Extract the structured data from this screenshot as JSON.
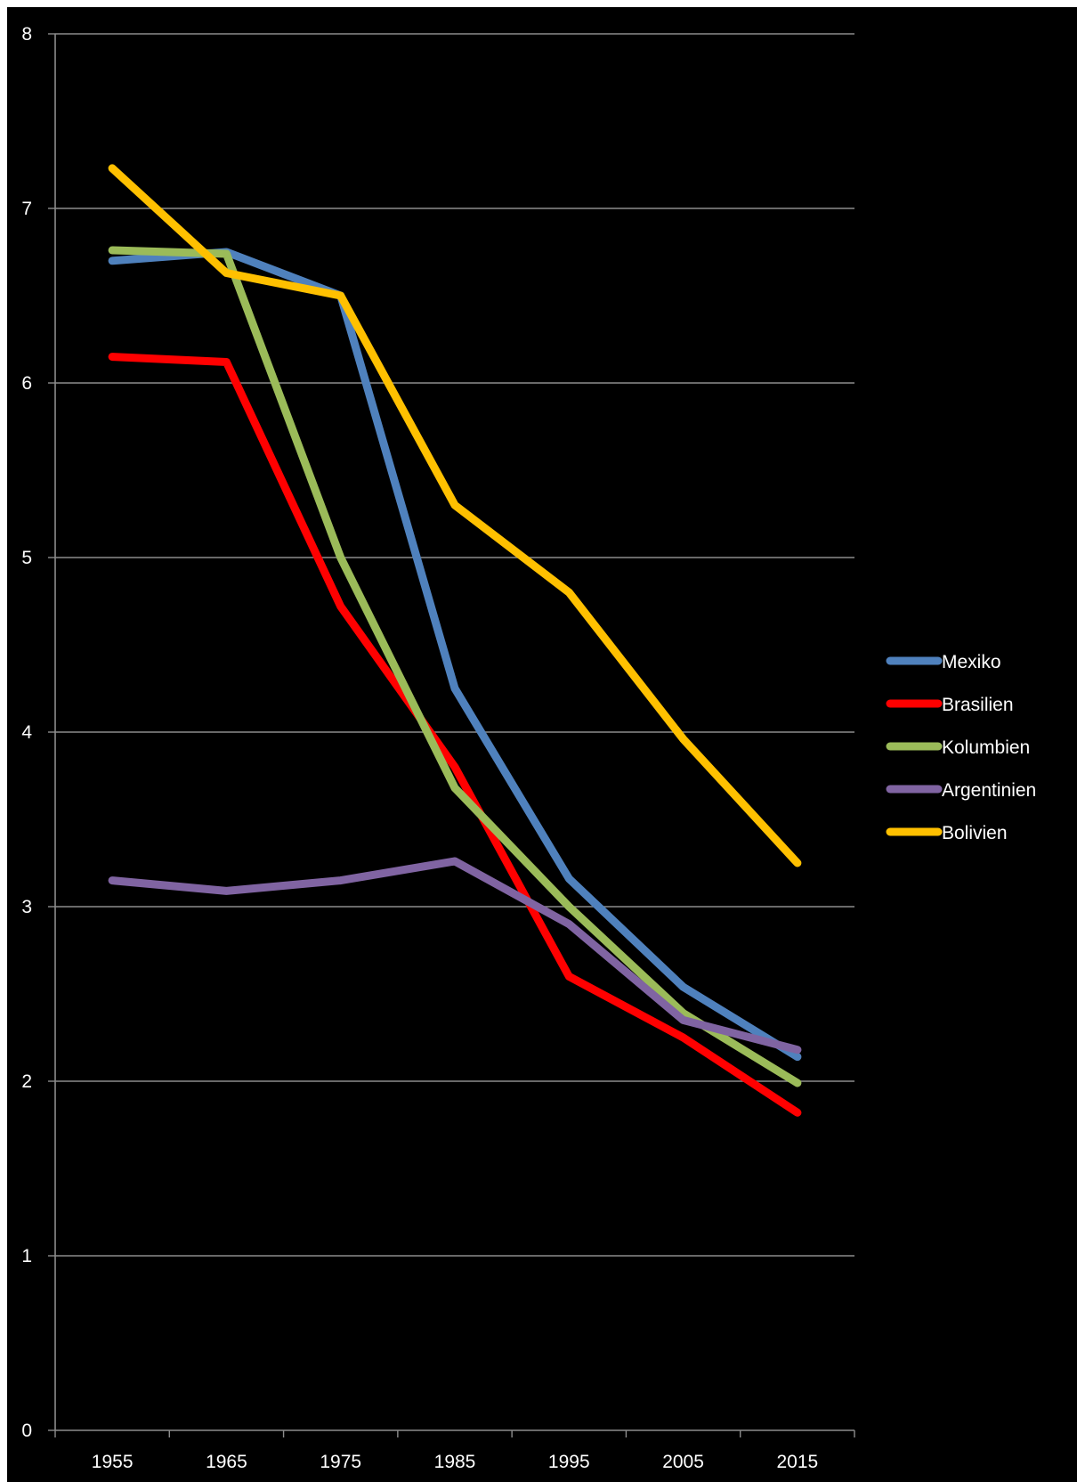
{
  "chart_data": {
    "type": "line",
    "categories": [
      "1955",
      "1965",
      "1975",
      "1985",
      "1995",
      "2005",
      "2015"
    ],
    "ylim": [
      0,
      8
    ],
    "yticks": [
      0,
      1,
      2,
      3,
      4,
      5,
      6,
      7,
      8
    ],
    "grid": true,
    "legend_position": "right",
    "background_color": "#000000",
    "series": [
      {
        "name": "Mexiko",
        "color": "#4f81bd",
        "values": [
          6.7,
          6.75,
          6.5,
          4.25,
          3.16,
          2.54,
          2.14
        ]
      },
      {
        "name": "Brasilien",
        "color": "#ff0000",
        "values": [
          6.15,
          6.12,
          4.72,
          3.8,
          2.6,
          2.25,
          1.82
        ]
      },
      {
        "name": "Kolumbien",
        "color": "#9bbb59",
        "values": [
          6.76,
          6.74,
          5.0,
          3.68,
          3.0,
          2.39,
          1.99
        ]
      },
      {
        "name": "Argentinien",
        "color": "#8064a2",
        "values": [
          3.15,
          3.09,
          3.15,
          3.26,
          2.9,
          2.35,
          2.18
        ]
      },
      {
        "name": "Bolivien",
        "color": "#ffc000",
        "values": [
          7.23,
          6.63,
          6.5,
          5.3,
          4.8,
          3.96,
          3.25
        ]
      }
    ]
  }
}
